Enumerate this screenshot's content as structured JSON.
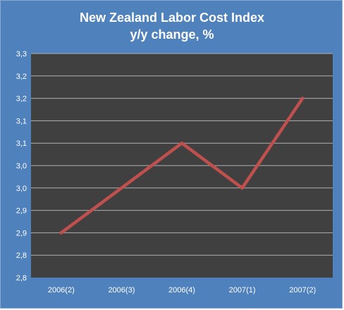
{
  "chart_data": {
    "type": "line",
    "title": "New Zealand Labor Cost Index",
    "subtitle": "y/y change, %",
    "categories": [
      "2006(2)",
      "2006(3)",
      "2006(4)",
      "2007(1)",
      "2007(2)"
    ],
    "series": [
      {
        "values": [
          2.9,
          3.0,
          3.1,
          3.0,
          3.2
        ]
      }
    ],
    "y_tick_labels": [
      "3,3",
      "3,2",
      "3,2",
      "3,1",
      "3,1",
      "3,0",
      "3,0",
      "2,9",
      "2,9",
      "2,8",
      "2,8"
    ],
    "ylim": [
      2.8,
      3.3
    ],
    "grid": true,
    "legend": "none",
    "colors": {
      "background": "#4f81bd",
      "plot_area": "#404040",
      "gridline": "#b0b0b0",
      "line": "#c0504d",
      "text": "#ffffff"
    }
  }
}
